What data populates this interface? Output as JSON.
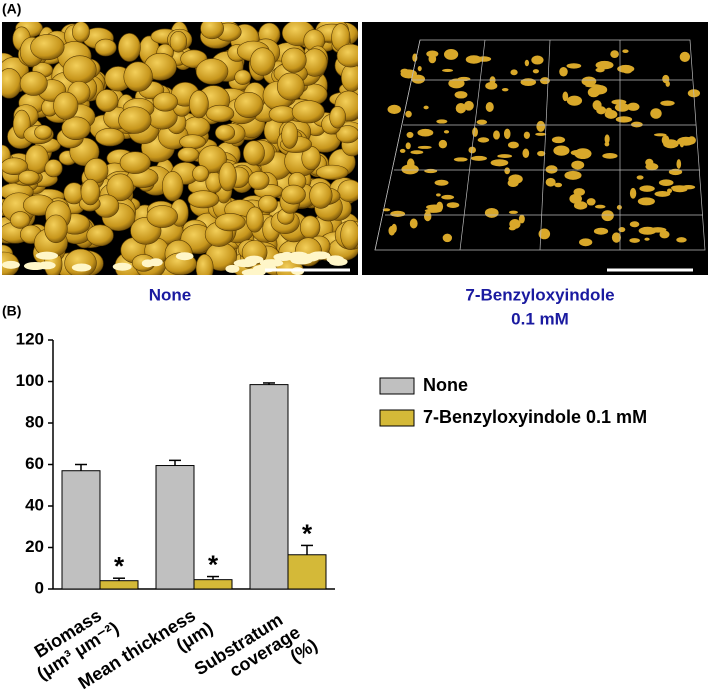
{
  "panel_labels": [
    "(A)",
    "(B)"
  ],
  "images": {
    "labels": [
      [
        "None"
      ],
      [
        "7-Benzyloxyindole",
        "0.1 mM"
      ]
    ]
  },
  "chart_data": {
    "type": "bar",
    "categories": [
      [
        "Biomass",
        "(μm³ μm⁻²)"
      ],
      [
        "Mean thickness",
        "(μm)"
      ],
      [
        "Substratum",
        "coverage",
        "(%)"
      ]
    ],
    "series": [
      {
        "name": "None",
        "color": "#c0c0c0",
        "values": [
          57,
          59.5,
          98.5
        ],
        "errors": [
          3,
          2.5,
          0.8
        ]
      },
      {
        "name": "7-Benzyloxyindole 0.1 mM",
        "color": "#d4b938",
        "values": [
          4,
          4.5,
          16.5
        ],
        "errors": [
          1.2,
          1.5,
          4.5
        ],
        "annotations": [
          "*",
          "*",
          "*"
        ]
      }
    ],
    "ylim": [
      0,
      120
    ],
    "yticks": [
      0,
      20,
      40,
      60,
      80,
      100,
      120
    ]
  }
}
